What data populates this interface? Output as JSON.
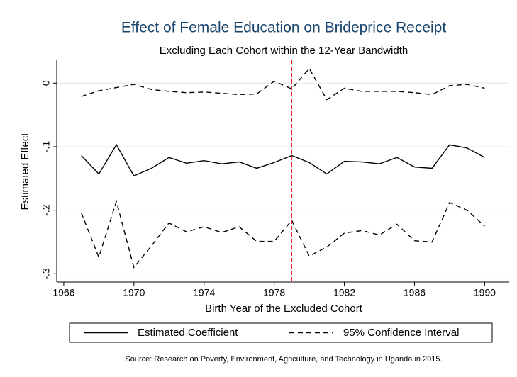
{
  "chart_data": {
    "type": "line",
    "title": "Effect of Female Education on Brideprice Receipt",
    "subtitle": "Excluding Each Cohort within the 12-Year Bandwidth",
    "xlabel": "Birth Year of the Excluded Cohort",
    "ylabel": "Estimated Effect",
    "note": "Source: Research on Poverty, Environment, Agriculture, and Technology in Uganda in 2015.",
    "x": [
      1967,
      1968,
      1969,
      1970,
      1971,
      1972,
      1973,
      1974,
      1975,
      1976,
      1977,
      1978,
      1979,
      1980,
      1981,
      1982,
      1983,
      1984,
      1985,
      1986,
      1987,
      1988,
      1989,
      1990
    ],
    "series": [
      {
        "name": "Estimated Coefficient",
        "color": "#000000",
        "style": "solid",
        "values": [
          -0.114,
          -0.143,
          -0.097,
          -0.146,
          -0.134,
          -0.117,
          -0.126,
          -0.122,
          -0.127,
          -0.124,
          -0.134,
          -0.125,
          -0.114,
          -0.125,
          -0.143,
          -0.123,
          -0.124,
          -0.127,
          -0.117,
          -0.132,
          -0.134,
          -0.097,
          -0.102,
          -0.117
        ]
      },
      {
        "name": "95% Confidence Interval",
        "color": "#000000",
        "style": "dashed",
        "upper": [
          -0.021,
          -0.012,
          -0.007,
          -0.002,
          -0.01,
          -0.013,
          -0.015,
          -0.014,
          -0.016,
          -0.018,
          -0.017,
          0.003,
          -0.009,
          0.023,
          -0.026,
          -0.008,
          -0.013,
          -0.013,
          -0.013,
          -0.015,
          -0.018,
          -0.004,
          -0.002,
          -0.008
        ],
        "lower": [
          -0.204,
          -0.274,
          -0.186,
          -0.29,
          -0.256,
          -0.22,
          -0.234,
          -0.226,
          -0.235,
          -0.226,
          -0.249,
          -0.249,
          -0.216,
          -0.272,
          -0.258,
          -0.236,
          -0.232,
          -0.239,
          -0.222,
          -0.248,
          -0.25,
          -0.188,
          -0.2,
          -0.225
        ]
      }
    ],
    "vline": 1979,
    "vline_color": "#e41a1c",
    "xlim": [
      1965.6,
      1991.4
    ],
    "ylim": [
      -0.313,
      0.036
    ],
    "xticks": [
      1966,
      1970,
      1974,
      1978,
      1982,
      1986,
      1990
    ],
    "yticks": [
      0,
      {
        "value": -0.1,
        "label": "-.1"
      },
      {
        "value": -0.2,
        "label": "-.2"
      },
      {
        "value": -0.3,
        "label": "-.3"
      }
    ],
    "grid": true,
    "title_color": "#1a476f",
    "legend": "bottom"
  }
}
